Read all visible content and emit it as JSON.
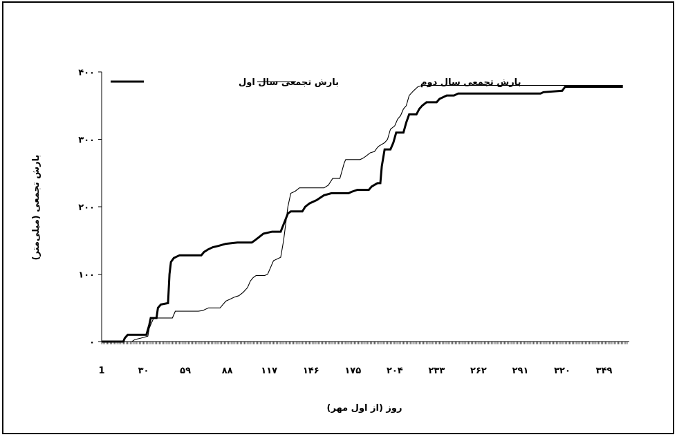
{
  "chart_data": {
    "type": "line",
    "title": "",
    "xlabel": "روز (از اول مهر)",
    "ylabel": "بارش تجمعی (میلی‌متر)",
    "xlim": [
      1,
      365
    ],
    "ylim": [
      0,
      400
    ],
    "y_ticks": [
      {
        "value": 0,
        "label": "۰"
      },
      {
        "value": 100,
        "label": "۱۰۰"
      },
      {
        "value": 200,
        "label": "۲۰۰"
      },
      {
        "value": 300,
        "label": "۳۰۰"
      },
      {
        "value": 400,
        "label": "۴۰۰"
      }
    ],
    "x_ticks": [
      {
        "value": 1,
        "label": "1"
      },
      {
        "value": 30,
        "label": "۳۰"
      },
      {
        "value": 59,
        "label": "۵۹"
      },
      {
        "value": 88,
        "label": "۸۸"
      },
      {
        "value": 117,
        "label": "۱۱۷"
      },
      {
        "value": 146,
        "label": "۱۴۶"
      },
      {
        "value": 175,
        "label": "۱۷۵"
      },
      {
        "value": 204,
        "label": "۲۰۴"
      },
      {
        "value": 233,
        "label": "۲۳۳"
      },
      {
        "value": 262,
        "label": "۲۶۲"
      },
      {
        "value": 291,
        "label": "۲۹۱"
      },
      {
        "value": 320,
        "label": "۳۲۰"
      },
      {
        "value": 349,
        "label": "۳۴۹"
      }
    ],
    "legend_position": "top",
    "grid": false,
    "series": [
      {
        "name": "بارش تجمعی سال اول",
        "style": "thick",
        "points": [
          [
            1,
            0
          ],
          [
            16,
            0
          ],
          [
            17,
            5
          ],
          [
            19,
            10
          ],
          [
            32,
            10
          ],
          [
            34,
            25
          ],
          [
            35,
            35
          ],
          [
            39,
            35
          ],
          [
            40,
            50
          ],
          [
            42,
            55
          ],
          [
            47,
            57
          ],
          [
            48,
            100
          ],
          [
            49,
            118
          ],
          [
            51,
            124
          ],
          [
            55,
            128
          ],
          [
            70,
            128
          ],
          [
            72,
            133
          ],
          [
            75,
            137
          ],
          [
            78,
            140
          ],
          [
            82,
            142
          ],
          [
            87,
            145
          ],
          [
            95,
            147
          ],
          [
            105,
            147
          ],
          [
            107,
            150
          ],
          [
            110,
            155
          ],
          [
            113,
            160
          ],
          [
            119,
            163
          ],
          [
            125,
            163
          ],
          [
            130,
            190
          ],
          [
            132,
            193
          ],
          [
            140,
            193
          ],
          [
            142,
            200
          ],
          [
            145,
            205
          ],
          [
            150,
            210
          ],
          [
            155,
            217
          ],
          [
            160,
            220
          ],
          [
            172,
            220
          ],
          [
            174,
            222
          ],
          [
            178,
            225
          ],
          [
            186,
            225
          ],
          [
            188,
            230
          ],
          [
            192,
            235
          ],
          [
            194,
            235
          ],
          [
            195,
            260
          ],
          [
            197,
            285
          ],
          [
            201,
            285
          ],
          [
            203,
            295
          ],
          [
            205,
            310
          ],
          [
            210,
            310
          ],
          [
            212,
            325
          ],
          [
            214,
            337
          ],
          [
            219,
            337
          ],
          [
            221,
            345
          ],
          [
            223,
            350
          ],
          [
            226,
            355
          ],
          [
            233,
            355
          ],
          [
            235,
            360
          ],
          [
            240,
            365
          ],
          [
            245,
            365
          ],
          [
            248,
            368
          ],
          [
            305,
            368
          ],
          [
            307,
            370
          ],
          [
            320,
            372
          ],
          [
            322,
            378
          ],
          [
            362,
            378
          ]
        ]
      },
      {
        "name": "بارش تجمعی سال دوم",
        "style": "thin",
        "points": [
          [
            1,
            0
          ],
          [
            22,
            0
          ],
          [
            24,
            3
          ],
          [
            28,
            5
          ],
          [
            33,
            8
          ],
          [
            34,
            20
          ],
          [
            37,
            35
          ],
          [
            50,
            35
          ],
          [
            52,
            45
          ],
          [
            68,
            45
          ],
          [
            71,
            46
          ],
          [
            75,
            50
          ],
          [
            83,
            50
          ],
          [
            85,
            55
          ],
          [
            87,
            60
          ],
          [
            90,
            63
          ],
          [
            93,
            66
          ],
          [
            96,
            68
          ],
          [
            99,
            73
          ],
          [
            102,
            80
          ],
          [
            104,
            90
          ],
          [
            106,
            95
          ],
          [
            108,
            98
          ],
          [
            114,
            98
          ],
          [
            116,
            100
          ],
          [
            120,
            120
          ],
          [
            125,
            125
          ],
          [
            127,
            150
          ],
          [
            130,
            200
          ],
          [
            132,
            220
          ],
          [
            135,
            223
          ],
          [
            138,
            228
          ],
          [
            155,
            228
          ],
          [
            158,
            232
          ],
          [
            161,
            242
          ],
          [
            166,
            242
          ],
          [
            169,
            265
          ],
          [
            170,
            270
          ],
          [
            180,
            270
          ],
          [
            182,
            272
          ],
          [
            184,
            275
          ],
          [
            187,
            280
          ],
          [
            190,
            282
          ],
          [
            192,
            288
          ],
          [
            193,
            290
          ],
          [
            197,
            295
          ],
          [
            199,
            300
          ],
          [
            201,
            315
          ],
          [
            204,
            320
          ],
          [
            206,
            330
          ],
          [
            208,
            335
          ],
          [
            210,
            345
          ],
          [
            212,
            350
          ],
          [
            214,
            365
          ],
          [
            217,
            372
          ],
          [
            220,
            378
          ],
          [
            223,
            380
          ],
          [
            230,
            380
          ],
          [
            362,
            380
          ]
        ]
      }
    ]
  }
}
